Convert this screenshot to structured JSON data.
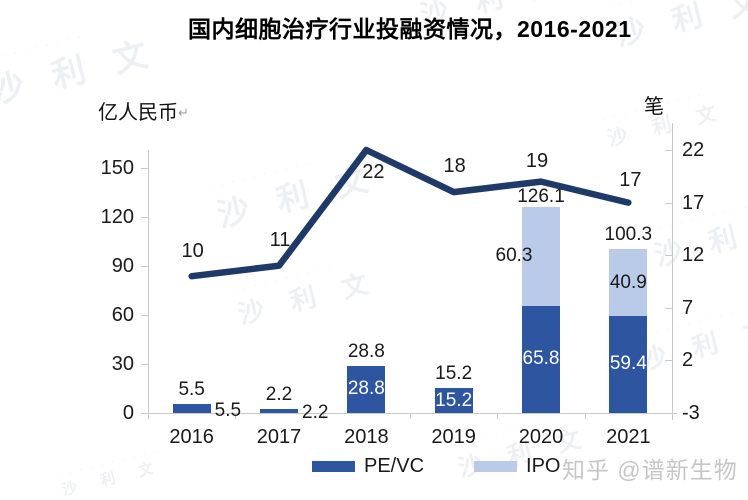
{
  "title": "国内细胞治疗行业投融资情况，2016-2021",
  "left_axis": {
    "unit": "亿人民币",
    "return_mark": "↵",
    "ticks": [
      150,
      120,
      90,
      60,
      30,
      0
    ]
  },
  "right_axis": {
    "unit": "笔",
    "ticks": [
      22,
      17,
      12,
      7,
      2,
      -3
    ]
  },
  "legend": {
    "items": [
      {
        "label": "PE/VC",
        "color": "#2d55a0"
      },
      {
        "label": "IPO",
        "color": "#b9cbe9"
      }
    ]
  },
  "watermark_zhihu": "知乎 @谱新生物",
  "watermark_brand": "沙 利 文",
  "chart_data": {
    "type": "bar+line",
    "title": "国内细胞治疗行业投融资情况，2016-2021",
    "categories": [
      "2016",
      "2017",
      "2018",
      "2019",
      "2020",
      "2021"
    ],
    "bar_series": [
      {
        "name": "PE/VC",
        "color": "#2d55a0",
        "stack": "amount",
        "values": [
          5.5,
          2.2,
          28.8,
          15.2,
          65.8,
          59.4
        ]
      },
      {
        "name": "IPO",
        "color": "#b9cbe9",
        "stack": "amount",
        "values": [
          0,
          0,
          0,
          0,
          60.3,
          40.9
        ]
      }
    ],
    "stack_totals": [
      5.5,
      2.2,
      28.8,
      15.2,
      126.1,
      100.3
    ],
    "line_series": {
      "name": "笔",
      "color": "#1f3a68",
      "axis": "right",
      "values": [
        10,
        11,
        22,
        18,
        19,
        17
      ]
    },
    "left_axis": {
      "label": "亿人民币",
      "range": [
        0,
        150
      ],
      "ticks": [
        150,
        120,
        90,
        60,
        30,
        0
      ]
    },
    "right_axis": {
      "label": "笔",
      "range": [
        -3,
        22
      ],
      "ticks": [
        22,
        17,
        12,
        7,
        2,
        -3
      ]
    },
    "grid": false,
    "legend_position": "bottom"
  }
}
